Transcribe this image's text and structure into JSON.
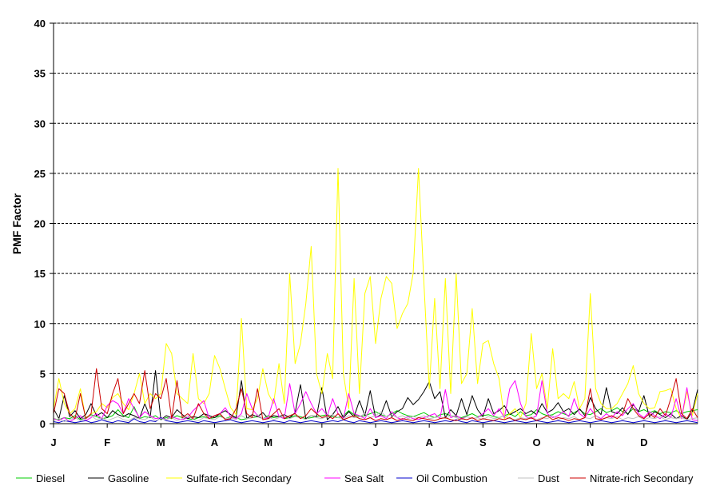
{
  "chart_data": {
    "type": "line",
    "title": "",
    "xlabel": "",
    "ylabel": "PMF Factor",
    "ylim": [
      0,
      40
    ],
    "yticks": [
      0,
      5,
      10,
      15,
      20,
      25,
      30,
      35,
      40
    ],
    "month_labels": [
      "J",
      "F",
      "M",
      "A",
      "M",
      "J",
      "J",
      "A",
      "S",
      "O",
      "N",
      "D"
    ],
    "x_unit": "sample index (every 3rd day, Jan-Dec)",
    "x_max": 120,
    "grid": "horizontal dashed",
    "legend_position": "bottom",
    "series": [
      {
        "name": "Diesel",
        "color": "#00cc00",
        "values": [
          0.5,
          0.4,
          0.6,
          0.5,
          0.8,
          0.4,
          0.6,
          0.9,
          0.7,
          0.5,
          0.6,
          0.8,
          1.4,
          0.8,
          0.6,
          1.7,
          0.5,
          0.7,
          0.6,
          0.8,
          0.4,
          0.6,
          0.5,
          0.8,
          0.6,
          0.5,
          0.4,
          0.6,
          0.7,
          0.5,
          0.6,
          0.8,
          0.5,
          0.7,
          0.6,
          0.4,
          0.5,
          0.6,
          0.7,
          0.5,
          0.8,
          0.6,
          0.7,
          0.5,
          0.6,
          0.8,
          0.7,
          0.5,
          0.6,
          0.7,
          0.8,
          0.9,
          0.7,
          0.6,
          0.8,
          1.3,
          0.9,
          0.7,
          0.8,
          1.0,
          1.2,
          0.9,
          0.7,
          1.0,
          1.3,
          1.0,
          0.8,
          0.7,
          0.9,
          1.1,
          0.8,
          0.6,
          0.9,
          1.0,
          0.8,
          0.7,
          0.6,
          0.8,
          1.0,
          0.7,
          0.8,
          0.9,
          0.7,
          0.6,
          0.8,
          1.0,
          0.7,
          1.2,
          0.8,
          0.9,
          1.4,
          1.0,
          0.8,
          0.9,
          1.2,
          1.0,
          0.8,
          1.1,
          1.4,
          1.0,
          0.9,
          1.2,
          1.5,
          1.1,
          1.3,
          1.6,
          1.2,
          1.0,
          1.5,
          1.2,
          1.4,
          1.1,
          1.3,
          1.0,
          1.2,
          1.1,
          1.3,
          1.0,
          1.2,
          1.3,
          1.4
        ]
      },
      {
        "name": "Gasoline",
        "color": "#000000",
        "values": [
          1.5,
          0.5,
          2.8,
          0.7,
          1.3,
          0.5,
          0.9,
          2.0,
          0.8,
          1.1,
          0.6,
          1.3,
          0.9,
          0.7,
          1.0,
          0.8,
          0.5,
          2.0,
          0.6,
          5.3,
          0.4,
          0.8,
          0.6,
          1.4,
          0.9,
          0.5,
          0.7,
          0.6,
          1.0,
          0.8,
          0.6,
          1.0,
          1.3,
          0.9,
          0.6,
          4.3,
          0.5,
          0.9,
          0.7,
          1.1,
          0.5,
          0.8,
          0.7,
          0.9,
          0.6,
          1.1,
          3.9,
          0.5,
          0.8,
          0.7,
          3.6,
          0.4,
          0.9,
          1.7,
          0.6,
          1.2,
          0.7,
          2.3,
          0.8,
          3.3,
          0.6,
          0.9,
          2.3,
          0.7,
          1.2,
          1.5,
          2.6,
          1.9,
          2.4,
          3.2,
          4.2,
          2.5,
          3.2,
          0.6,
          1.4,
          0.8,
          2.5,
          0.9,
          2.8,
          1.4,
          0.7,
          2.5,
          1.0,
          1.3,
          1.8,
          0.9,
          1.2,
          1.5,
          1.0,
          1.3,
          0.9,
          2.0,
          1.1,
          1.4,
          2.1,
          1.2,
          1.5,
          0.9,
          1.5,
          0.8,
          2.6,
          1.5,
          0.9,
          3.6,
          1.2,
          1.0,
          1.6,
          0.9,
          1.9,
          1.2,
          2.8,
          0.7,
          1.2,
          0.9,
          0.6,
          1.0,
          0.5,
          0.8,
          0.4,
          1.2,
          3.4
        ]
      },
      {
        "name": "Sulfate-rich Secondary",
        "color": "#ffff00",
        "values": [
          1.5,
          4.5,
          2.0,
          1.0,
          1.5,
          3.5,
          0.5,
          1.0,
          1.2,
          2.0,
          1.6,
          2.6,
          3.0,
          2.0,
          1.4,
          3.0,
          5.0,
          2.0,
          3.0,
          2.5,
          3.0,
          8.0,
          7.0,
          3.0,
          2.5,
          2.0,
          7.0,
          2.5,
          2.0,
          3.0,
          6.8,
          5.5,
          3.5,
          1.6,
          0.9,
          10.5,
          1.5,
          1.4,
          2.5,
          5.5,
          3.0,
          2.0,
          6.0,
          2.0,
          15.0,
          6.0,
          8.0,
          12.0,
          17.7,
          5.0,
          3.0,
          7.0,
          4.5,
          25.5,
          5.0,
          1.5,
          14.5,
          3.0,
          13.0,
          14.7,
          8.0,
          12.5,
          14.7,
          14.0,
          9.5,
          11.0,
          12.0,
          15.0,
          25.5,
          14.0,
          3.5,
          12.5,
          3.5,
          14.5,
          3.0,
          15.0,
          4.0,
          5.0,
          11.5,
          4.0,
          8.0,
          8.3,
          6.0,
          4.5,
          0.5,
          1.0,
          1.5,
          0.6,
          2.0,
          9.0,
          3.5,
          5.0,
          1.5,
          7.5,
          2.5,
          3.0,
          2.5,
          4.2,
          1.5,
          2.5,
          13.0,
          3.5,
          2.0,
          1.5,
          1.5,
          2.0,
          3.0,
          4.0,
          5.8,
          3.0,
          2.0,
          1.5,
          1.6,
          3.2,
          3.3,
          3.5,
          1.5,
          0.5,
          3.2,
          0.8,
          3.0
        ]
      },
      {
        "name": "Sea Salt",
        "color": "#ff00ff",
        "values": [
          0.5,
          0.3,
          0.6,
          0.2,
          0.5,
          0.8,
          0.3,
          0.6,
          1.0,
          0.5,
          1.8,
          2.3,
          2.0,
          1.0,
          2.5,
          1.5,
          0.6,
          1.2,
          0.8,
          0.5,
          0.6,
          0.4,
          0.7,
          0.5,
          0.4,
          0.6,
          1.3,
          1.8,
          2.3,
          0.5,
          0.8,
          1.0,
          1.6,
          0.7,
          0.5,
          1.0,
          3.0,
          1.5,
          0.8,
          0.5,
          0.6,
          2.5,
          0.7,
          0.5,
          4.0,
          1.0,
          2.0,
          3.2,
          2.0,
          1.0,
          1.5,
          0.8,
          2.5,
          1.0,
          0.5,
          3.0,
          1.0,
          0.8,
          0.5,
          1.5,
          0.6,
          0.8,
          0.5,
          1.2,
          0.6,
          0.4,
          0.7,
          0.5,
          0.4,
          0.6,
          0.8,
          1.0,
          0.5,
          3.4,
          0.6,
          0.8,
          0.5,
          0.7,
          0.5,
          0.6,
          1.0,
          1.5,
          0.8,
          1.5,
          0.6,
          3.5,
          4.3,
          2.0,
          0.7,
          0.5,
          0.8,
          4.3,
          1.0,
          0.6,
          0.8,
          1.2,
          0.7,
          2.5,
          1.0,
          0.6,
          1.5,
          0.8,
          0.5,
          1.0,
          0.6,
          1.2,
          0.8,
          1.5,
          2.0,
          1.0,
          0.6,
          1.2,
          0.8,
          0.5,
          1.0,
          0.6,
          2.5,
          0.5,
          3.6,
          0.4,
          0.3
        ]
      },
      {
        "name": "Oil Combustion",
        "color": "#0000cc",
        "values": [
          0.2,
          0.1,
          0.3,
          0.2,
          0.1,
          0.2,
          0.3,
          0.1,
          0.2,
          0.4,
          0.2,
          0.1,
          0.3,
          0.2,
          0.1,
          0.5,
          0.2,
          0.1,
          0.3,
          0.2,
          0.6,
          0.3,
          0.2,
          0.1,
          0.2,
          0.3,
          0.2,
          0.1,
          0.3,
          0.2,
          0.1,
          0.2,
          0.3,
          0.4,
          0.2,
          0.1,
          0.2,
          0.3,
          0.2,
          0.1,
          0.2,
          0.3,
          0.2,
          0.1,
          0.3,
          0.2,
          0.1,
          0.2,
          0.3,
          0.2,
          0.1,
          0.2,
          0.3,
          0.2,
          0.4,
          0.2,
          0.1,
          0.3,
          0.2,
          0.1,
          0.2,
          0.3,
          0.2,
          0.1,
          0.2,
          0.3,
          0.2,
          0.1,
          0.2,
          0.3,
          0.2,
          0.1,
          0.2,
          0.3,
          0.2,
          0.4,
          0.2,
          0.1,
          0.3,
          0.2,
          0.1,
          0.2,
          0.3,
          0.2,
          0.1,
          0.2,
          0.3,
          0.2,
          0.1,
          0.2,
          0.3,
          0.2,
          0.1,
          0.2,
          0.3,
          0.2,
          0.1,
          0.2,
          0.3,
          0.2,
          0.1,
          0.2,
          0.3,
          0.2,
          0.1,
          0.2,
          0.3,
          0.2,
          0.1,
          0.2,
          0.3,
          0.2,
          0.1,
          0.2,
          0.3,
          0.2,
          0.1,
          0.2,
          0.3,
          0.2,
          0.1
        ]
      },
      {
        "name": "Dust",
        "color": "#c0c0c0",
        "values": [
          0.3,
          0.5,
          0.2,
          0.4,
          0.6,
          0.3,
          0.5,
          0.8,
          0.4,
          0.6,
          0.3,
          0.5,
          0.7,
          0.4,
          0.3,
          0.6,
          0.5,
          0.4,
          0.7,
          0.3,
          0.5,
          0.4,
          0.6,
          0.3,
          0.5,
          0.8,
          0.4,
          0.3,
          0.6,
          0.5,
          0.4,
          0.7,
          0.5,
          0.6,
          0.4,
          0.8,
          0.5,
          0.6,
          0.9,
          0.5,
          0.7,
          0.4,
          0.6,
          0.8,
          0.5,
          0.7,
          0.6,
          0.4,
          0.8,
          0.6,
          0.5,
          0.7,
          0.9,
          0.6,
          0.5,
          0.8,
          0.6,
          0.7,
          1.0,
          0.6,
          0.8,
          1.2,
          0.7,
          0.9,
          0.6,
          0.8,
          0.5,
          0.7,
          0.6,
          0.8,
          0.5,
          0.6,
          0.7,
          0.5,
          0.8,
          0.6,
          0.4,
          0.7,
          0.5,
          0.6,
          0.4,
          0.7,
          0.5,
          0.6,
          0.8,
          0.5,
          0.4,
          0.6,
          0.5,
          0.7,
          0.4,
          0.6,
          0.5,
          0.8,
          0.4,
          0.6,
          0.5,
          0.7,
          0.4,
          0.6,
          0.5,
          0.8,
          0.4,
          0.6,
          0.5,
          0.7,
          0.4,
          0.6,
          0.5,
          0.7,
          0.4,
          0.6,
          0.5,
          0.7,
          0.4,
          0.6,
          0.5,
          0.6,
          0.4,
          0.5,
          0.6
        ]
      },
      {
        "name": "Nitrate-rich Secondary",
        "color": "#cc0000",
        "values": [
          1.0,
          3.5,
          3.0,
          1.0,
          0.5,
          3.0,
          0.5,
          1.0,
          5.5,
          1.5,
          1.0,
          3.0,
          4.5,
          1.0,
          2.0,
          3.0,
          2.0,
          5.3,
          1.5,
          3.0,
          2.5,
          4.5,
          0.5,
          4.3,
          0.6,
          1.0,
          0.5,
          2.0,
          1.0,
          0.5,
          0.8,
          1.0,
          0.4,
          0.5,
          1.5,
          3.5,
          1.0,
          0.6,
          3.5,
          0.4,
          0.5,
          1.0,
          1.5,
          0.5,
          0.8,
          1.0,
          0.5,
          0.8,
          1.5,
          1.0,
          0.6,
          0.8,
          0.5,
          1.0,
          0.4,
          0.6,
          0.8,
          0.5,
          0.4,
          0.6,
          0.3,
          0.5,
          0.4,
          0.6,
          0.3,
          0.5,
          0.4,
          0.3,
          0.6,
          0.5,
          0.4,
          0.3,
          0.5,
          0.6,
          0.4,
          0.3,
          0.5,
          0.4,
          0.6,
          0.3,
          0.5,
          0.4,
          0.3,
          0.5,
          0.4,
          0.6,
          0.3,
          0.5,
          0.4,
          0.6,
          0.3,
          0.5,
          0.8,
          0.4,
          0.6,
          0.5,
          0.3,
          0.5,
          0.4,
          0.6,
          3.5,
          0.5,
          0.4,
          0.6,
          0.8,
          0.5,
          1.0,
          2.5,
          1.5,
          0.8,
          0.5,
          1.0,
          0.6,
          1.5,
          0.8,
          2.5,
          4.5,
          1.0,
          0.5,
          1.5,
          0.6
        ]
      }
    ]
  }
}
